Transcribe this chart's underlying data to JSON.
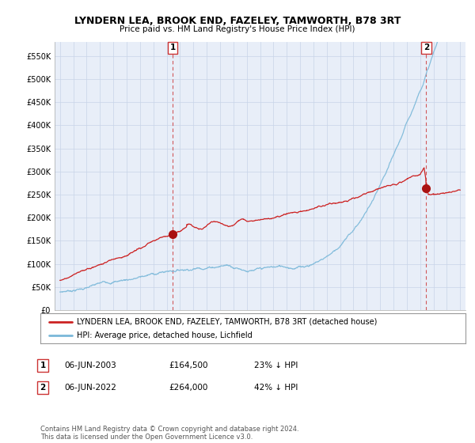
{
  "title": "LYNDERN LEA, BROOK END, FAZELEY, TAMWORTH, B78 3RT",
  "subtitle": "Price paid vs. HM Land Registry's House Price Index (HPI)",
  "legend_line1": "LYNDERN LEA, BROOK END, FAZELEY, TAMWORTH, B78 3RT (detached house)",
  "legend_line2": "HPI: Average price, detached house, Lichfield",
  "annotation1_label": "1",
  "annotation1_date": "06-JUN-2003",
  "annotation1_price": "£164,500",
  "annotation1_hpi": "23% ↓ HPI",
  "annotation2_label": "2",
  "annotation2_date": "06-JUN-2022",
  "annotation2_price": "£264,000",
  "annotation2_hpi": "42% ↓ HPI",
  "footer": "Contains HM Land Registry data © Crown copyright and database right 2024.\nThis data is licensed under the Open Government Licence v3.0.",
  "ylim": [
    0,
    580000
  ],
  "yticks": [
    0,
    50000,
    100000,
    150000,
    200000,
    250000,
    300000,
    350000,
    400000,
    450000,
    500000,
    550000
  ],
  "hpi_color": "#7ab8d9",
  "price_color": "#cc2222",
  "marker_color": "#aa1111",
  "background_color": "#f0f4fa",
  "plot_bg_color": "#e8eef8",
  "grid_color": "#c8d4e8"
}
